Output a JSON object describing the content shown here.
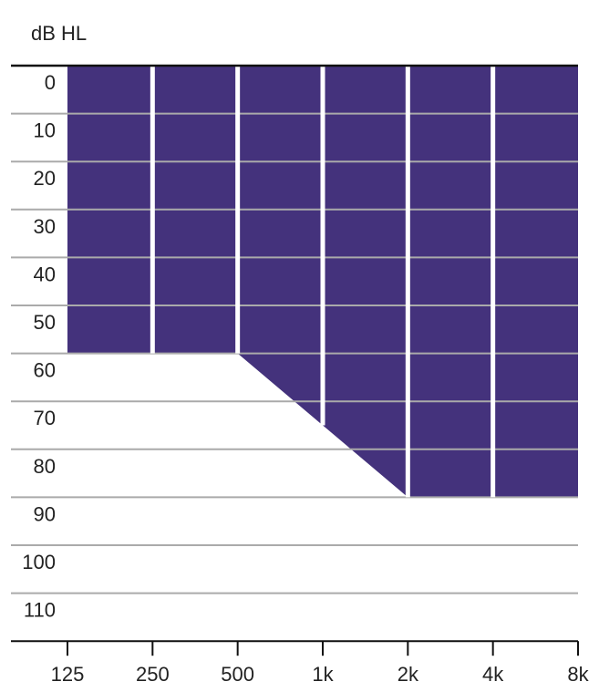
{
  "chart_data": {
    "type": "area",
    "title": "",
    "ylabel": "dB HL",
    "xlabel": "",
    "x_categories": [
      "125",
      "250",
      "500",
      "1k",
      "2k",
      "4k",
      "8k"
    ],
    "y_ticks": [
      0,
      10,
      20,
      30,
      40,
      50,
      60,
      70,
      80,
      90,
      100,
      110
    ],
    "ylim": [
      0,
      120
    ],
    "y_inverted": true,
    "grid": true,
    "fill_color": "#44327c",
    "grid_color": "#aaaaaa",
    "series": [
      {
        "x": [
          "125",
          "250",
          "500",
          "1k",
          "2k",
          "4k",
          "8k"
        ],
        "values": [
          60,
          60,
          60,
          75,
          90,
          90,
          90
        ]
      }
    ]
  }
}
